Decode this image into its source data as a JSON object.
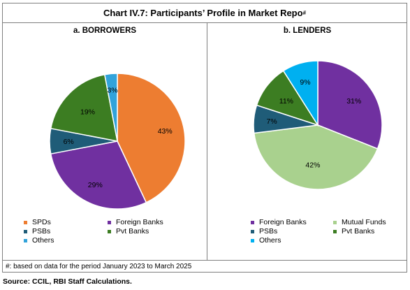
{
  "title": "Chart IV.7: Participants’ Profile in Market Repo",
  "title_sup": "#",
  "footnote": "#:  based on data for the period January 2023 to March 2025",
  "source": "Source: CCIL, RBI Staff Calculations.",
  "chart_data": [
    {
      "type": "pie",
      "title": "a. BORROWERS",
      "categories": [
        "SPDs",
        "Foreign Banks",
        "PSBs",
        "Pvt Banks",
        "Others"
      ],
      "values": [
        43,
        29,
        6,
        19,
        3
      ],
      "labels": [
        "43%",
        "29%",
        "6%",
        "19%",
        "3%"
      ],
      "colors": [
        "#ED7D31",
        "#7030A0",
        "#1F5C78",
        "#3C7D22",
        "#32A3DA"
      ],
      "legend_position": "bottom"
    },
    {
      "type": "pie",
      "title": "b. LENDERS",
      "categories": [
        "Foreign Banks",
        "Mutual Funds",
        "PSBs",
        "Pvt Banks",
        "Others"
      ],
      "values": [
        31,
        42,
        7,
        11,
        9
      ],
      "labels": [
        "31%",
        "42%",
        "7%",
        "11%",
        "9%"
      ],
      "colors": [
        "#7030A0",
        "#A9D18E",
        "#1F5C78",
        "#3C7D22",
        "#00B0F0"
      ],
      "legend_position": "bottom"
    }
  ]
}
